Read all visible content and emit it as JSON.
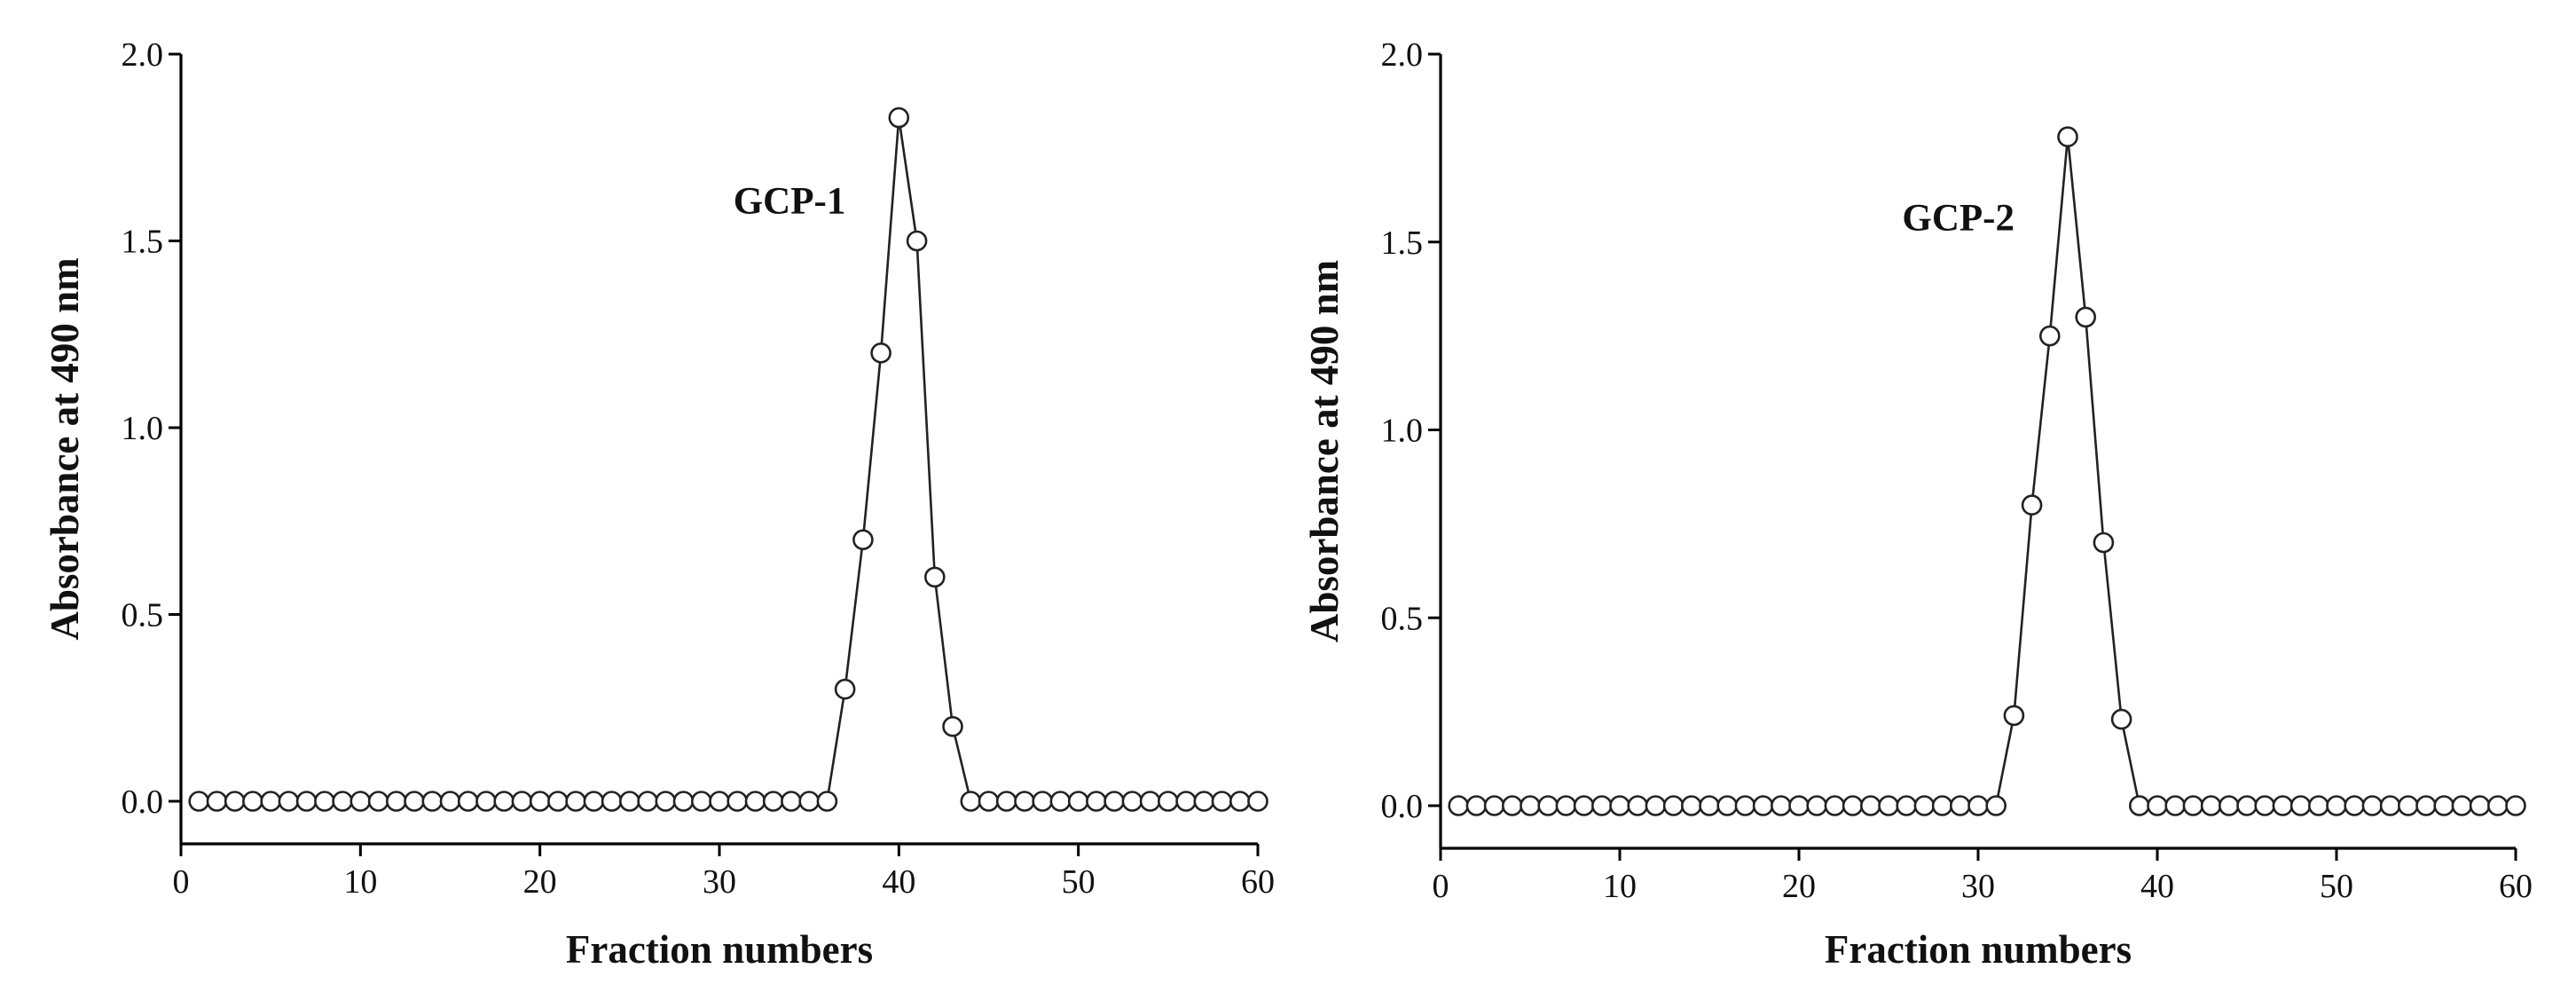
{
  "chart_data": [
    {
      "type": "line",
      "title": "",
      "xlabel": "Fraction numbers",
      "ylabel": "Absorbance at 490 nm",
      "xlim": [
        0,
        60
      ],
      "ylim": [
        0,
        2.0
      ],
      "x_ticks": [
        "0",
        "10",
        "20",
        "30",
        "40",
        "50",
        "60"
      ],
      "y_ticks": [
        "0.0",
        "0.5",
        "1.0",
        "1.5",
        "2.0"
      ],
      "grid": false,
      "marker": "open-circle",
      "annotation": "GCP-1",
      "series": [
        {
          "x": [
            1,
            2,
            3,
            4,
            5,
            6,
            7,
            8,
            9,
            10,
            11,
            12,
            13,
            14,
            15,
            16,
            17,
            18,
            19,
            20,
            21,
            22,
            23,
            24,
            25,
            26,
            27,
            28,
            29,
            30,
            31,
            32,
            33,
            34,
            35,
            36,
            37,
            38,
            39,
            40,
            41,
            42,
            43,
            44,
            45,
            46,
            47,
            48,
            49,
            50,
            51,
            52,
            53,
            54,
            55,
            56,
            57,
            58,
            59,
            60
          ],
          "values": [
            0,
            0,
            0,
            0,
            0,
            0,
            0,
            0,
            0,
            0,
            0,
            0,
            0,
            0,
            0,
            0,
            0,
            0,
            0,
            0,
            0,
            0,
            0,
            0,
            0,
            0,
            0,
            0,
            0,
            0,
            0,
            0,
            0,
            0,
            0,
            0,
            0.3,
            0.7,
            1.2,
            1.83,
            1.5,
            0.6,
            0.2,
            0,
            0,
            0,
            0,
            0,
            0,
            0,
            0,
            0,
            0,
            0,
            0,
            0,
            0,
            0,
            0,
            0
          ]
        }
      ]
    },
    {
      "type": "line",
      "title": "",
      "xlabel": "Fraction numbers",
      "ylabel": "Absorbance at 490 nm",
      "xlim": [
        0,
        60
      ],
      "ylim": [
        0,
        2.0
      ],
      "x_ticks": [
        "0",
        "10",
        "20",
        "30",
        "40",
        "50",
        "60"
      ],
      "y_ticks": [
        "0.0",
        "0.5",
        "1.0",
        "1.5",
        "2.0"
      ],
      "grid": false,
      "marker": "open-circle",
      "annotation": "GCP-2",
      "series": [
        {
          "x": [
            1,
            2,
            3,
            4,
            5,
            6,
            7,
            8,
            9,
            10,
            11,
            12,
            13,
            14,
            15,
            16,
            17,
            18,
            19,
            20,
            21,
            22,
            23,
            24,
            25,
            26,
            27,
            28,
            29,
            30,
            31,
            32,
            33,
            34,
            35,
            36,
            37,
            38,
            39,
            40,
            41,
            42,
            43,
            44,
            45,
            46,
            47,
            48,
            49,
            50,
            51,
            52,
            53,
            54,
            55,
            56,
            57,
            58,
            59,
            60
          ],
          "values": [
            0,
            0,
            0,
            0,
            0,
            0,
            0,
            0,
            0,
            0,
            0,
            0,
            0,
            0,
            0,
            0,
            0,
            0,
            0,
            0,
            0,
            0,
            0,
            0,
            0,
            0,
            0,
            0,
            0,
            0,
            0,
            0.24,
            0.8,
            1.25,
            1.78,
            1.3,
            0.7,
            0.23,
            0,
            0,
            0,
            0,
            0,
            0,
            0,
            0,
            0,
            0,
            0,
            0,
            0,
            0,
            0,
            0,
            0,
            0,
            0,
            0,
            0,
            0
          ]
        }
      ]
    }
  ]
}
